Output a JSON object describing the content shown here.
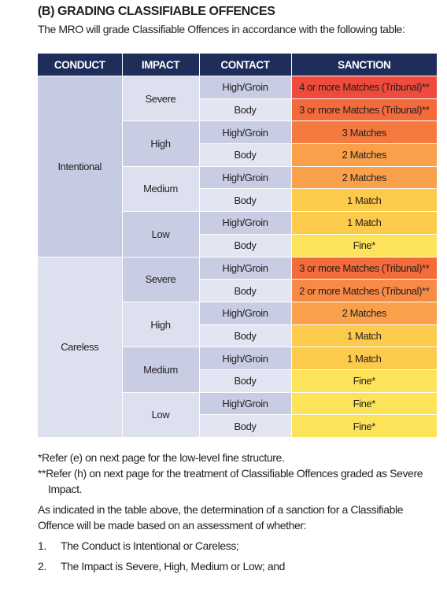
{
  "heading": "(B)  GRADING CLASSIFIABLE OFFENCES",
  "intro": "The MRO will grade Classifiable Offences in accordance with the following table:",
  "table": {
    "headers": [
      "CONDUCT",
      "IMPACT",
      "CONTACT",
      "SANCTION"
    ],
    "sections": [
      {
        "conduct": "Intentional",
        "color": "#c5cbe3",
        "impacts": [
          {
            "impact": "Severe",
            "color": "#dde0ef",
            "rows": [
              {
                "contact": "High/Groin",
                "sanction": "4 or more Matches (Tribunal)**",
                "color": "#ef4a3b"
              },
              {
                "contact": "Body",
                "sanction": "3 or more Matches (Tribunal)**",
                "color": "#f36a3b"
              }
            ]
          },
          {
            "impact": "High",
            "color": "#c9cde4",
            "rows": [
              {
                "contact": "High/Groin",
                "sanction": "3 Matches",
                "color": "#f47a3f"
              },
              {
                "contact": "Body",
                "sanction": "2 Matches",
                "color": "#f9a04b"
              }
            ]
          },
          {
            "impact": "Medium",
            "color": "#dde0ef",
            "rows": [
              {
                "contact": "High/Groin",
                "sanction": "2 Matches",
                "color": "#f9a04b"
              },
              {
                "contact": "Body",
                "sanction": "1 Match",
                "color": "#fdcb4b"
              }
            ]
          },
          {
            "impact": "Low",
            "color": "#c9cde4",
            "rows": [
              {
                "contact": "High/Groin",
                "sanction": "1 Match",
                "color": "#fdcb4b"
              },
              {
                "contact": "Body",
                "sanction": "Fine*",
                "color": "#fde35a"
              }
            ]
          }
        ]
      },
      {
        "conduct": "Careless",
        "color": "#dde0ef",
        "impacts": [
          {
            "impact": "Severe",
            "color": "#c9cde4",
            "rows": [
              {
                "contact": "High/Groin",
                "sanction": "3 or more Matches (Tribunal)**",
                "color": "#f36a3b"
              },
              {
                "contact": "Body",
                "sanction": "2 or more Matches (Tribunal)**",
                "color": "#f78a44"
              }
            ]
          },
          {
            "impact": "High",
            "color": "#dde0ef",
            "rows": [
              {
                "contact": "High/Groin",
                "sanction": "2 Matches",
                "color": "#f9a04b"
              },
              {
                "contact": "Body",
                "sanction": "1 Match",
                "color": "#fdcb4b"
              }
            ]
          },
          {
            "impact": "Medium",
            "color": "#c9cde4",
            "rows": [
              {
                "contact": "High/Groin",
                "sanction": "1 Match",
                "color": "#fdcb4b"
              },
              {
                "contact": "Body",
                "sanction": "Fine*",
                "color": "#fde35a"
              }
            ]
          },
          {
            "impact": "Low",
            "color": "#dde0ef",
            "rows": [
              {
                "contact": "High/Groin",
                "sanction": "Fine*",
                "color": "#fde35a"
              },
              {
                "contact": "Body",
                "sanction": "Fine*",
                "color": "#fde35a"
              }
            ]
          }
        ]
      }
    ]
  },
  "footnotes": [
    "*Refer (e) on next page for the low-level fine structure.",
    "**Refer (h) on next page for the treatment of Classifiable Offences graded as Severe Impact."
  ],
  "paragraph": "As indicated in the table above, the determination of a sanction for a Classifiable Offence will be made based on an assessment of whether:",
  "list": [
    {
      "number": "1.",
      "text": "The Conduct is Intentional or Careless;"
    },
    {
      "number": "2.",
      "text": "The Impact is Severe, High, Medium or Low; and"
    }
  ]
}
